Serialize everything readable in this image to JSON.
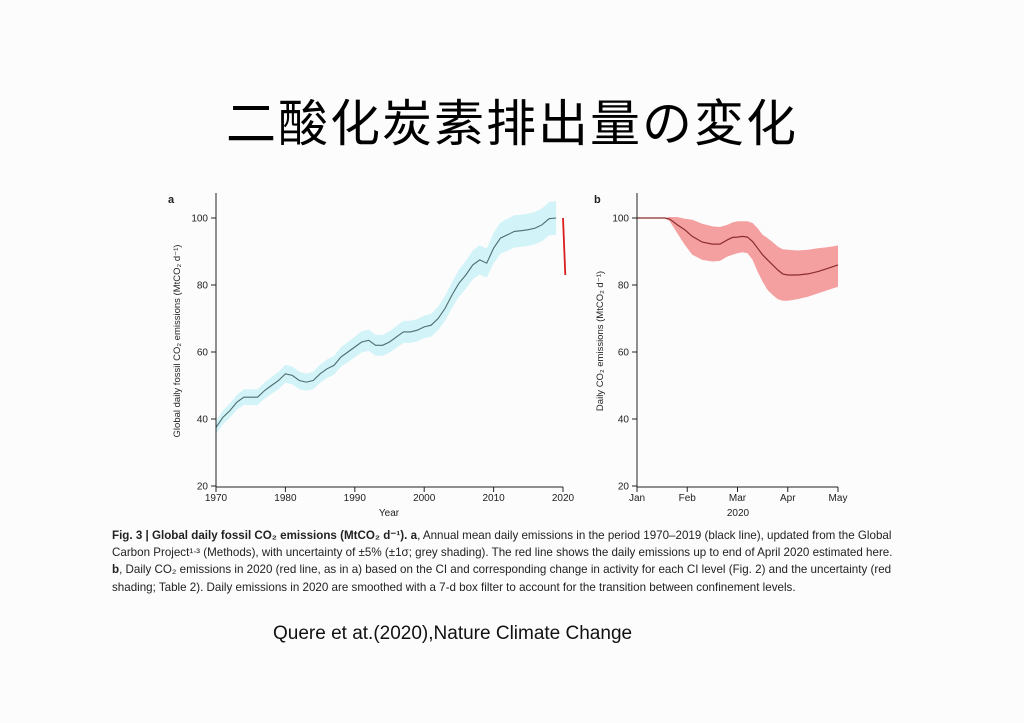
{
  "slide": {
    "title": "二酸化炭素排出量の変化",
    "credit": "Quere et at.(2020),Nature Climate Change"
  },
  "caption": {
    "fig_label": "Fig. 3 | Global daily fossil CO₂ emissions (MtCO₂ d⁻¹).",
    "part_a_tag": "a",
    "part_a_text": ", Annual mean daily emissions in the period 1970–2019 (black line), updated from the Global Carbon Project¹ᐧ³ (Methods), with uncertainty of ±5% (±1σ; grey shading). The red line shows the daily emissions up to end of April 2020 estimated here.",
    "part_b_tag": "b",
    "part_b_text": ", Daily CO₂ emissions in 2020 (red line, as in a) based on the CI and corresponding change in activity for each CI level (Fig. 2) and the uncertainty (red shading; Table 2). Daily emissions in 2020 are smoothed with a 7-d box filter to account for the transition between confinement levels."
  },
  "chart_data": [
    {
      "panel": "a",
      "type": "line",
      "xlabel": "Year",
      "ylabel": "Global daily fossil CO₂ emissions (MtCO₂ d⁻¹)",
      "xlim": [
        1970,
        2020
      ],
      "ylim": [
        20,
        105
      ],
      "xticks": [
        1970,
        1980,
        1990,
        2000,
        2010,
        2020
      ],
      "yticks": [
        20,
        40,
        60,
        80,
        100
      ],
      "uncertainty_pct": 5,
      "colors": {
        "line": "#4d6e6e",
        "band": "#d2f3f8",
        "red": "#d81e1e"
      },
      "series": [
        {
          "x": [
            1970,
            1971,
            1972,
            1973,
            1974,
            1975,
            1976,
            1977,
            1978,
            1979,
            1980,
            1981,
            1982,
            1983,
            1984,
            1985,
            1986,
            1987,
            1988,
            1989,
            1990,
            1991,
            1992,
            1993,
            1994,
            1995,
            1996,
            1997,
            1998,
            1999,
            2000,
            2001,
            2002,
            2003,
            2004,
            2005,
            2006,
            2007,
            2008,
            2009,
            2010,
            2011,
            2012,
            2013,
            2014,
            2015,
            2016,
            2017,
            2018,
            2019
          ],
          "y": [
            37.5,
            40.5,
            42.5,
            45,
            46.5,
            46.5,
            46.5,
            48.5,
            50,
            51.5,
            53.5,
            53,
            51.5,
            51,
            51.5,
            53.5,
            55,
            56,
            58.5,
            60,
            61.5,
            63,
            63.5,
            62,
            62,
            63,
            64.5,
            66,
            66,
            66.5,
            67.5,
            68,
            70,
            73,
            77,
            80.5,
            83,
            86,
            87.5,
            86.5,
            91,
            94,
            95,
            96,
            96.2,
            96.5,
            97,
            98,
            99.8,
            100
          ]
        },
        {
          "x": [
            2020,
            2020.33
          ],
          "y": [
            100,
            83
          ]
        }
      ]
    },
    {
      "panel": "b",
      "type": "line",
      "xlabel": "2020",
      "ylabel": "Daily CO₂ emissions (MtCO₂ d⁻¹)",
      "xlim": [
        0,
        4
      ],
      "ylim": [
        20,
        105
      ],
      "xtick_labels": [
        "Jan",
        "Feb",
        "Mar",
        "Apr",
        "May"
      ],
      "yticks": [
        20,
        40,
        60,
        80,
        100
      ],
      "colors": {
        "line": "#8b2d2d",
        "band": "#f5a0a0"
      },
      "x": [
        0,
        0.2,
        0.4,
        0.55,
        0.65,
        0.8,
        0.95,
        1.1,
        1.3,
        1.5,
        1.65,
        1.8,
        1.9,
        2.0,
        2.1,
        2.2,
        2.3,
        2.4,
        2.5,
        2.6,
        2.7,
        2.8,
        2.9,
        3.0,
        3.2,
        3.4,
        3.6,
        3.8,
        4.0
      ],
      "y": [
        100,
        100,
        100,
        100,
        99.7,
        98,
        96.5,
        94.5,
        92.8,
        92.2,
        92.2,
        93.5,
        94.2,
        94.3,
        94.5,
        94.3,
        93,
        91,
        89,
        87.5,
        86,
        84.5,
        83.3,
        83,
        83,
        83.3,
        84,
        85,
        86
      ],
      "lower": [
        100,
        100,
        100,
        100,
        99,
        95.5,
        92,
        89,
        87.5,
        87,
        87.2,
        88.5,
        89,
        89.5,
        89.8,
        89.5,
        87.5,
        84,
        81,
        78.5,
        77,
        75.8,
        75.3,
        75.3,
        75.8,
        76.5,
        77.5,
        78.5,
        79.5
      ],
      "upper": [
        100,
        100,
        100,
        100,
        100.3,
        100.3,
        99.8,
        99.5,
        98.3,
        97.5,
        97.3,
        98,
        98.7,
        99,
        99,
        99,
        98.5,
        97,
        95,
        94,
        92.8,
        91.5,
        90.7,
        90.5,
        90.3,
        90.5,
        91,
        91.3,
        91.8
      ]
    }
  ]
}
